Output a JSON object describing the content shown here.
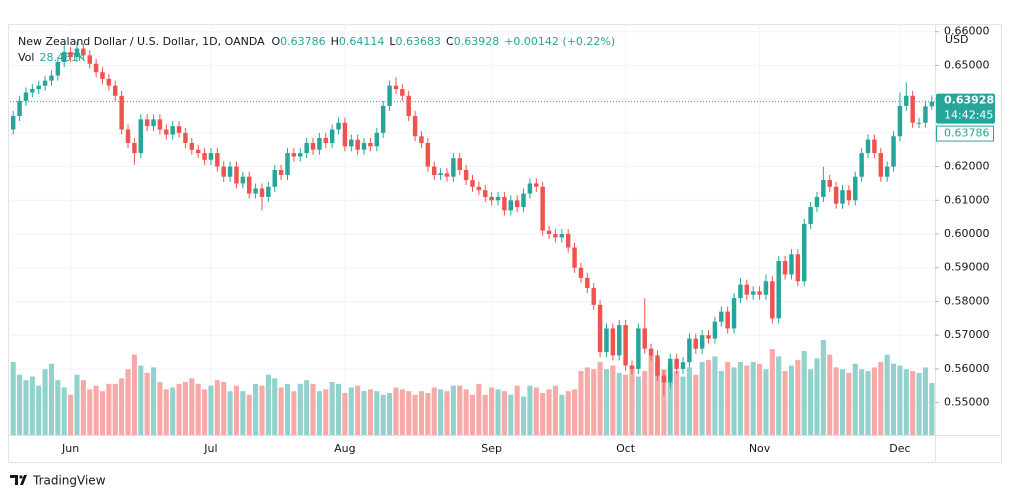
{
  "chart_data": {
    "type": "candlestick",
    "title": "New Zealand Dollar / U.S. Dollar, 1D, OANDA",
    "ohlc_letters": [
      "O",
      "H",
      "L",
      "C"
    ],
    "change": "+0.00142 (+0.22%)",
    "volume_title": "Vol",
    "last_volume_label": "28.461K",
    "currency": "USD",
    "countdown": "14:42:45",
    "brand": "TradingView",
    "up_color": "#26a69a",
    "down_color": "#ef5350",
    "up_volume_color": "#92d2cc",
    "down_volume_color": "#f7a9a7",
    "grid": true,
    "ylim": [
      0.5404,
      0.6611
    ],
    "yticks": [
      {
        "value": 0.55,
        "label": "0.55000"
      },
      {
        "value": 0.56,
        "label": "0.56000"
      },
      {
        "value": 0.57,
        "label": "0.57000"
      },
      {
        "value": 0.58,
        "label": "0.58000"
      },
      {
        "value": 0.59,
        "label": "0.59000"
      },
      {
        "value": 0.6,
        "label": "0.60000"
      },
      {
        "value": 0.61,
        "label": "0.61000"
      },
      {
        "value": 0.62,
        "label": "0.62000"
      },
      {
        "value": 0.63,
        "label": "0.63000"
      },
      {
        "value": 0.64,
        "label": "0.64000"
      },
      {
        "value": 0.65,
        "label": "0.65000"
      },
      {
        "value": 0.66,
        "label": "0.66000"
      }
    ],
    "categories": [
      null,
      null,
      null,
      null,
      null,
      null,
      null,
      null,
      null,
      "Jun",
      null,
      null,
      null,
      null,
      null,
      null,
      null,
      null,
      null,
      null,
      null,
      null,
      null,
      null,
      null,
      null,
      null,
      null,
      null,
      null,
      null,
      "Jul",
      null,
      null,
      null,
      null,
      null,
      null,
      null,
      null,
      null,
      null,
      null,
      null,
      null,
      null,
      null,
      null,
      null,
      null,
      null,
      null,
      "Aug",
      null,
      null,
      null,
      null,
      null,
      null,
      null,
      null,
      null,
      null,
      null,
      null,
      null,
      null,
      null,
      null,
      null,
      null,
      null,
      null,
      null,
      null,
      "Sep",
      null,
      null,
      null,
      null,
      null,
      null,
      null,
      null,
      null,
      null,
      null,
      null,
      null,
      null,
      null,
      null,
      null,
      null,
      null,
      null,
      "Oct",
      null,
      null,
      null,
      null,
      null,
      null,
      null,
      null,
      null,
      null,
      null,
      null,
      null,
      null,
      null,
      null,
      null,
      null,
      null,
      null,
      "Nov",
      null,
      null,
      null,
      null,
      null,
      null,
      null,
      null,
      null,
      null,
      null,
      null,
      null,
      null,
      null,
      null,
      null,
      null,
      null,
      null,
      null,
      "Dec",
      null,
      null,
      null,
      null,
      null
    ],
    "open": [
      0.631,
      0.635,
      0.6395,
      0.642,
      0.643,
      0.644,
      0.6455,
      0.647,
      0.651,
      0.654,
      0.6525,
      0.655,
      0.653,
      0.6505,
      0.648,
      0.646,
      0.644,
      0.641,
      0.631,
      0.627,
      0.624,
      0.634,
      0.632,
      0.634,
      0.631,
      0.6295,
      0.632,
      0.63,
      0.627,
      0.625,
      0.624,
      0.622,
      0.624,
      0.62,
      0.617,
      0.62,
      0.615,
      0.617,
      0.612,
      0.6135,
      0.611,
      0.614,
      0.619,
      0.6175,
      0.624,
      0.623,
      0.624,
      0.627,
      0.625,
      0.6285,
      0.627,
      0.631,
      0.633,
      0.626,
      0.628,
      0.625,
      0.627,
      0.626,
      0.63,
      0.638,
      0.644,
      0.643,
      0.641,
      0.635,
      0.629,
      0.627,
      0.62,
      0.6175,
      0.618,
      0.617,
      0.6225,
      0.619,
      0.616,
      0.614,
      0.613,
      0.611,
      0.61,
      0.611,
      0.607,
      0.61,
      0.608,
      0.612,
      0.615,
      0.614,
      0.601,
      0.6,
      0.599,
      0.6,
      0.596,
      0.59,
      0.587,
      0.584,
      0.579,
      0.565,
      0.572,
      0.564,
      0.573,
      0.561,
      0.56,
      0.572,
      0.566,
      0.564,
      0.558,
      0.556,
      0.563,
      0.56,
      0.562,
      0.569,
      0.566,
      0.57,
      0.569,
      0.574,
      0.577,
      0.572,
      0.581,
      0.585,
      0.582,
      0.583,
      0.582,
      0.586,
      0.575,
      0.592,
      0.588,
      0.594,
      0.586,
      0.603,
      0.608,
      0.611,
      0.616,
      0.614,
      0.609,
      0.613,
      0.61,
      0.617,
      0.624,
      0.628,
      0.624,
      0.617,
      0.62,
      0.629,
      0.638,
      0.641,
      0.633,
      0.633,
      0.63786
    ],
    "high": [
      0.6365,
      0.641,
      0.6435,
      0.6445,
      0.6455,
      0.647,
      0.6485,
      0.6525,
      0.656,
      0.6555,
      0.657,
      0.6565,
      0.6545,
      0.652,
      0.6495,
      0.6475,
      0.6455,
      0.6425,
      0.6325,
      0.6285,
      0.6355,
      0.6355,
      0.6355,
      0.6355,
      0.6325,
      0.6335,
      0.6335,
      0.6315,
      0.6285,
      0.6265,
      0.6255,
      0.6255,
      0.6255,
      0.6215,
      0.6215,
      0.6215,
      0.6185,
      0.6185,
      0.615,
      0.615,
      0.6155,
      0.6205,
      0.6205,
      0.6255,
      0.6255,
      0.6255,
      0.6285,
      0.6285,
      0.63,
      0.63,
      0.6325,
      0.6345,
      0.6345,
      0.6295,
      0.6295,
      0.6285,
      0.6285,
      0.6315,
      0.6395,
      0.6455,
      0.6465,
      0.6445,
      0.6425,
      0.6365,
      0.6305,
      0.6285,
      0.6215,
      0.6195,
      0.6195,
      0.624,
      0.624,
      0.6205,
      0.6175,
      0.6155,
      0.6145,
      0.6125,
      0.6125,
      0.6125,
      0.6115,
      0.6115,
      0.6135,
      0.6165,
      0.6165,
      0.6155,
      0.6025,
      0.6015,
      0.6015,
      0.6015,
      0.5975,
      0.5915,
      0.5885,
      0.5855,
      0.5805,
      0.5735,
      0.5735,
      0.5745,
      0.5745,
      0.5625,
      0.5735,
      0.581,
      0.5675,
      0.5655,
      0.5595,
      0.5645,
      0.5645,
      0.5635,
      0.5705,
      0.5705,
      0.5715,
      0.5715,
      0.5755,
      0.5785,
      0.5785,
      0.5825,
      0.587,
      0.5865,
      0.5845,
      0.5845,
      0.588,
      0.5875,
      0.5935,
      0.5935,
      0.5955,
      0.5955,
      0.6045,
      0.6095,
      0.6125,
      0.62,
      0.6175,
      0.6155,
      0.6145,
      0.6145,
      0.6185,
      0.6255,
      0.6295,
      0.6295,
      0.6255,
      0.6215,
      0.6305,
      0.642,
      0.645,
      0.6425,
      0.6345,
      0.6395,
      0.64114
    ],
    "low": [
      0.6295,
      0.6335,
      0.638,
      0.6405,
      0.6415,
      0.6425,
      0.644,
      0.6455,
      0.6495,
      0.651,
      0.651,
      0.6515,
      0.649,
      0.6465,
      0.6445,
      0.6425,
      0.6395,
      0.6295,
      0.6255,
      0.6205,
      0.6225,
      0.6305,
      0.6305,
      0.6295,
      0.628,
      0.628,
      0.6285,
      0.6255,
      0.6235,
      0.6225,
      0.6205,
      0.6205,
      0.6185,
      0.6155,
      0.6155,
      0.6135,
      0.6135,
      0.6105,
      0.6105,
      0.607,
      0.6095,
      0.6125,
      0.616,
      0.616,
      0.6215,
      0.6215,
      0.6225,
      0.6235,
      0.6235,
      0.6255,
      0.6255,
      0.6295,
      0.6245,
      0.6245,
      0.6235,
      0.6235,
      0.6245,
      0.6245,
      0.6285,
      0.6365,
      0.6415,
      0.6395,
      0.6335,
      0.6275,
      0.6255,
      0.6185,
      0.616,
      0.616,
      0.6155,
      0.6155,
      0.6175,
      0.6145,
      0.6125,
      0.6115,
      0.6095,
      0.6085,
      0.6085,
      0.6055,
      0.6055,
      0.6065,
      0.6065,
      0.6105,
      0.6125,
      0.5995,
      0.5985,
      0.5975,
      0.5975,
      0.5945,
      0.5885,
      0.5855,
      0.5825,
      0.5775,
      0.5635,
      0.5635,
      0.5625,
      0.5625,
      0.5595,
      0.5585,
      0.5585,
      0.5645,
      0.5625,
      0.5565,
      0.552,
      0.5545,
      0.5585,
      0.5585,
      0.5605,
      0.5645,
      0.5645,
      0.5675,
      0.5675,
      0.5725,
      0.5705,
      0.5705,
      0.5795,
      0.5805,
      0.5805,
      0.5805,
      0.5805,
      0.5735,
      0.5735,
      0.5865,
      0.5865,
      0.5845,
      0.5845,
      0.6015,
      0.6065,
      0.6095,
      0.6125,
      0.6075,
      0.6075,
      0.6085,
      0.6085,
      0.6155,
      0.6225,
      0.6225,
      0.6155,
      0.6155,
      0.6185,
      0.6275,
      0.6365,
      0.6315,
      0.6315,
      0.6315,
      0.63683
    ],
    "close": [
      0.635,
      0.6395,
      0.642,
      0.643,
      0.644,
      0.6455,
      0.647,
      0.651,
      0.654,
      0.6525,
      0.655,
      0.653,
      0.6505,
      0.648,
      0.646,
      0.644,
      0.641,
      0.631,
      0.627,
      0.624,
      0.634,
      0.632,
      0.634,
      0.631,
      0.6295,
      0.632,
      0.63,
      0.627,
      0.625,
      0.624,
      0.622,
      0.624,
      0.62,
      0.617,
      0.62,
      0.615,
      0.617,
      0.612,
      0.6135,
      0.611,
      0.614,
      0.619,
      0.6175,
      0.624,
      0.623,
      0.624,
      0.627,
      0.625,
      0.6285,
      0.627,
      0.631,
      0.633,
      0.626,
      0.628,
      0.625,
      0.627,
      0.626,
      0.63,
      0.638,
      0.644,
      0.643,
      0.641,
      0.635,
      0.629,
      0.627,
      0.62,
      0.6175,
      0.618,
      0.617,
      0.6225,
      0.619,
      0.616,
      0.614,
      0.613,
      0.611,
      0.61,
      0.611,
      0.607,
      0.61,
      0.608,
      0.612,
      0.615,
      0.614,
      0.601,
      0.6,
      0.599,
      0.6,
      0.596,
      0.59,
      0.587,
      0.584,
      0.579,
      0.565,
      0.572,
      0.564,
      0.573,
      0.561,
      0.56,
      0.572,
      0.566,
      0.564,
      0.558,
      0.556,
      0.563,
      0.56,
      0.562,
      0.569,
      0.566,
      0.57,
      0.569,
      0.574,
      0.577,
      0.572,
      0.581,
      0.585,
      0.582,
      0.583,
      0.582,
      0.586,
      0.575,
      0.592,
      0.588,
      0.594,
      0.586,
      0.603,
      0.608,
      0.611,
      0.616,
      0.614,
      0.609,
      0.613,
      0.61,
      0.617,
      0.624,
      0.628,
      0.624,
      0.617,
      0.62,
      0.629,
      0.638,
      0.641,
      0.633,
      0.633,
      0.63786,
      0.63928
    ],
    "volume": [
      40,
      33,
      30,
      32,
      27,
      36,
      39,
      30,
      26,
      22,
      33,
      30,
      25,
      27,
      24,
      28,
      28,
      31,
      36,
      44,
      38,
      34,
      37,
      29,
      25,
      26,
      28,
      29,
      31,
      28,
      25,
      27,
      30,
      29,
      24,
      27,
      24,
      22,
      28,
      27,
      33,
      31,
      26,
      28,
      24,
      28,
      30,
      28,
      24,
      25,
      29,
      28,
      23,
      26,
      27,
      24,
      25,
      24,
      22,
      23,
      26,
      25,
      24,
      22,
      24,
      23,
      26,
      25,
      24,
      27,
      27,
      25,
      22,
      28,
      22,
      26,
      25,
      24,
      22,
      27,
      21,
      27,
      26,
      23,
      25,
      27,
      22,
      24,
      25,
      35,
      37,
      36,
      40,
      36,
      38,
      34,
      33,
      38,
      32,
      35,
      44,
      40,
      36,
      38,
      35,
      32,
      37,
      33,
      40,
      41,
      43,
      35,
      40,
      37,
      40,
      38,
      40,
      39,
      36,
      47,
      43,
      35,
      38,
      41,
      46,
      36,
      42,
      52,
      44,
      37,
      36,
      34,
      39,
      36,
      35,
      37,
      40,
      44,
      39,
      38,
      36,
      35,
      34,
      37,
      28.461
    ]
  }
}
